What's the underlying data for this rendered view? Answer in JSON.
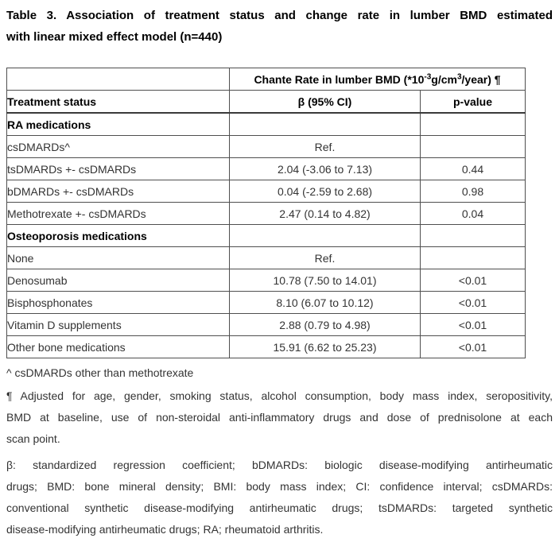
{
  "title": {
    "line1": "Table 3. Association of treatment status and change rate in lumber BMD estimated",
    "line2": "with linear mixed effect model (n=440)"
  },
  "table": {
    "spanning_header": {
      "part1": "Chante Rate in lumber BMD (*10",
      "sup1": "-3",
      "part2": "g/cm",
      "sup2": "3",
      "part3": "/year) ¶"
    },
    "col1_header": "Treatment status",
    "col2_header": "β (95% CI)",
    "col3_header": "p-value",
    "rows": [
      {
        "label": "RA medications",
        "beta": "",
        "p": "",
        "type": "section"
      },
      {
        "label": "csDMARDs^",
        "beta": "Ref.",
        "p": "",
        "type": "item"
      },
      {
        "label": "tsDMARDs +- csDMARDs",
        "beta": "2.04 (-3.06 to 7.13)",
        "p": "0.44",
        "type": "item"
      },
      {
        "label": "bDMARDs +- csDMARDs",
        "beta": "0.04 (-2.59 to 2.68)",
        "p": "0.98",
        "type": "item"
      },
      {
        "label": "Methotrexate +- csDMARDs",
        "beta": "2.47 (0.14 to 4.82)",
        "p": "0.04",
        "type": "item"
      },
      {
        "label": "Osteoporosis medications",
        "beta": "",
        "p": "",
        "type": "section"
      },
      {
        "label": "None",
        "beta": "Ref.",
        "p": "",
        "type": "item"
      },
      {
        "label": "Denosumab",
        "beta": "10.78 (7.50 to 14.01)",
        "p": "<0.01",
        "type": "item"
      },
      {
        "label": "Bisphosphonates",
        "beta": "8.10 (6.07 to 10.12)",
        "p": "<0.01",
        "type": "item"
      },
      {
        "label": "Vitamin D supplements",
        "beta": "2.88 (0.79 to 4.98)",
        "p": "<0.01",
        "type": "item"
      },
      {
        "label": "Other bone medications",
        "beta": "15.91 (6.62 to 25.23)",
        "p": "<0.01",
        "type": "item"
      }
    ]
  },
  "footnotes": {
    "caret": "^ csDMARDs other than methotrexate",
    "adjusted": {
      "lines": [
        "¶ Adjusted for age, gender, smoking status, alcohol consumption, body mass index, seropositivity,",
        "BMD at baseline, use of non-steroidal anti-inflammatory drugs and dose of prednisolone at each",
        "scan point."
      ]
    },
    "abbreviations": {
      "lines": [
        "β: standardized regression coefficient; bDMARDs: biologic disease-modifying antirheumatic",
        "drugs; BMD: bone mineral density; BMI: body mass index; CI: confidence interval; csDMARDs:",
        "conventional synthetic disease-modifying antirheumatic drugs; tsDMARDs: targeted synthetic",
        "disease-modifying antirheumatic drugs; RA; rheumatoid arthritis."
      ]
    }
  }
}
